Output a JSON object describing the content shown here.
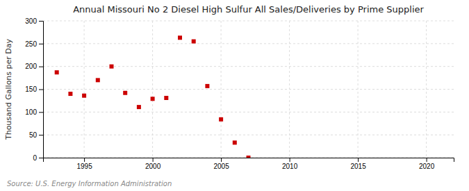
{
  "chart_data": {
    "type": "scatter",
    "title": "Annual Missouri No 2 Diesel High Sulfur All Sales/Deliveries by Prime Supplier",
    "ylabel": "Thousand Gallons per Day",
    "annotations": [
      "Source: U.S. Energy Information Administration"
    ],
    "x": [
      1993,
      1994,
      1995,
      1996,
      1997,
      1998,
      1999,
      2000,
      2001,
      2002,
      2003,
      2004,
      2005,
      2006,
      2007
    ],
    "values": [
      187,
      140,
      136,
      170,
      200,
      142,
      111,
      129,
      131,
      263,
      255,
      157,
      84,
      33,
      0
    ],
    "color": "#cc0000",
    "marker": "square",
    "xlim": [
      1992,
      2022
    ],
    "ylim": [
      0,
      300
    ],
    "xticks": [
      1995,
      2000,
      2005,
      2010,
      2015,
      2020
    ],
    "yticks": [
      0,
      50,
      100,
      150,
      200,
      250,
      300
    ],
    "grid": true
  }
}
